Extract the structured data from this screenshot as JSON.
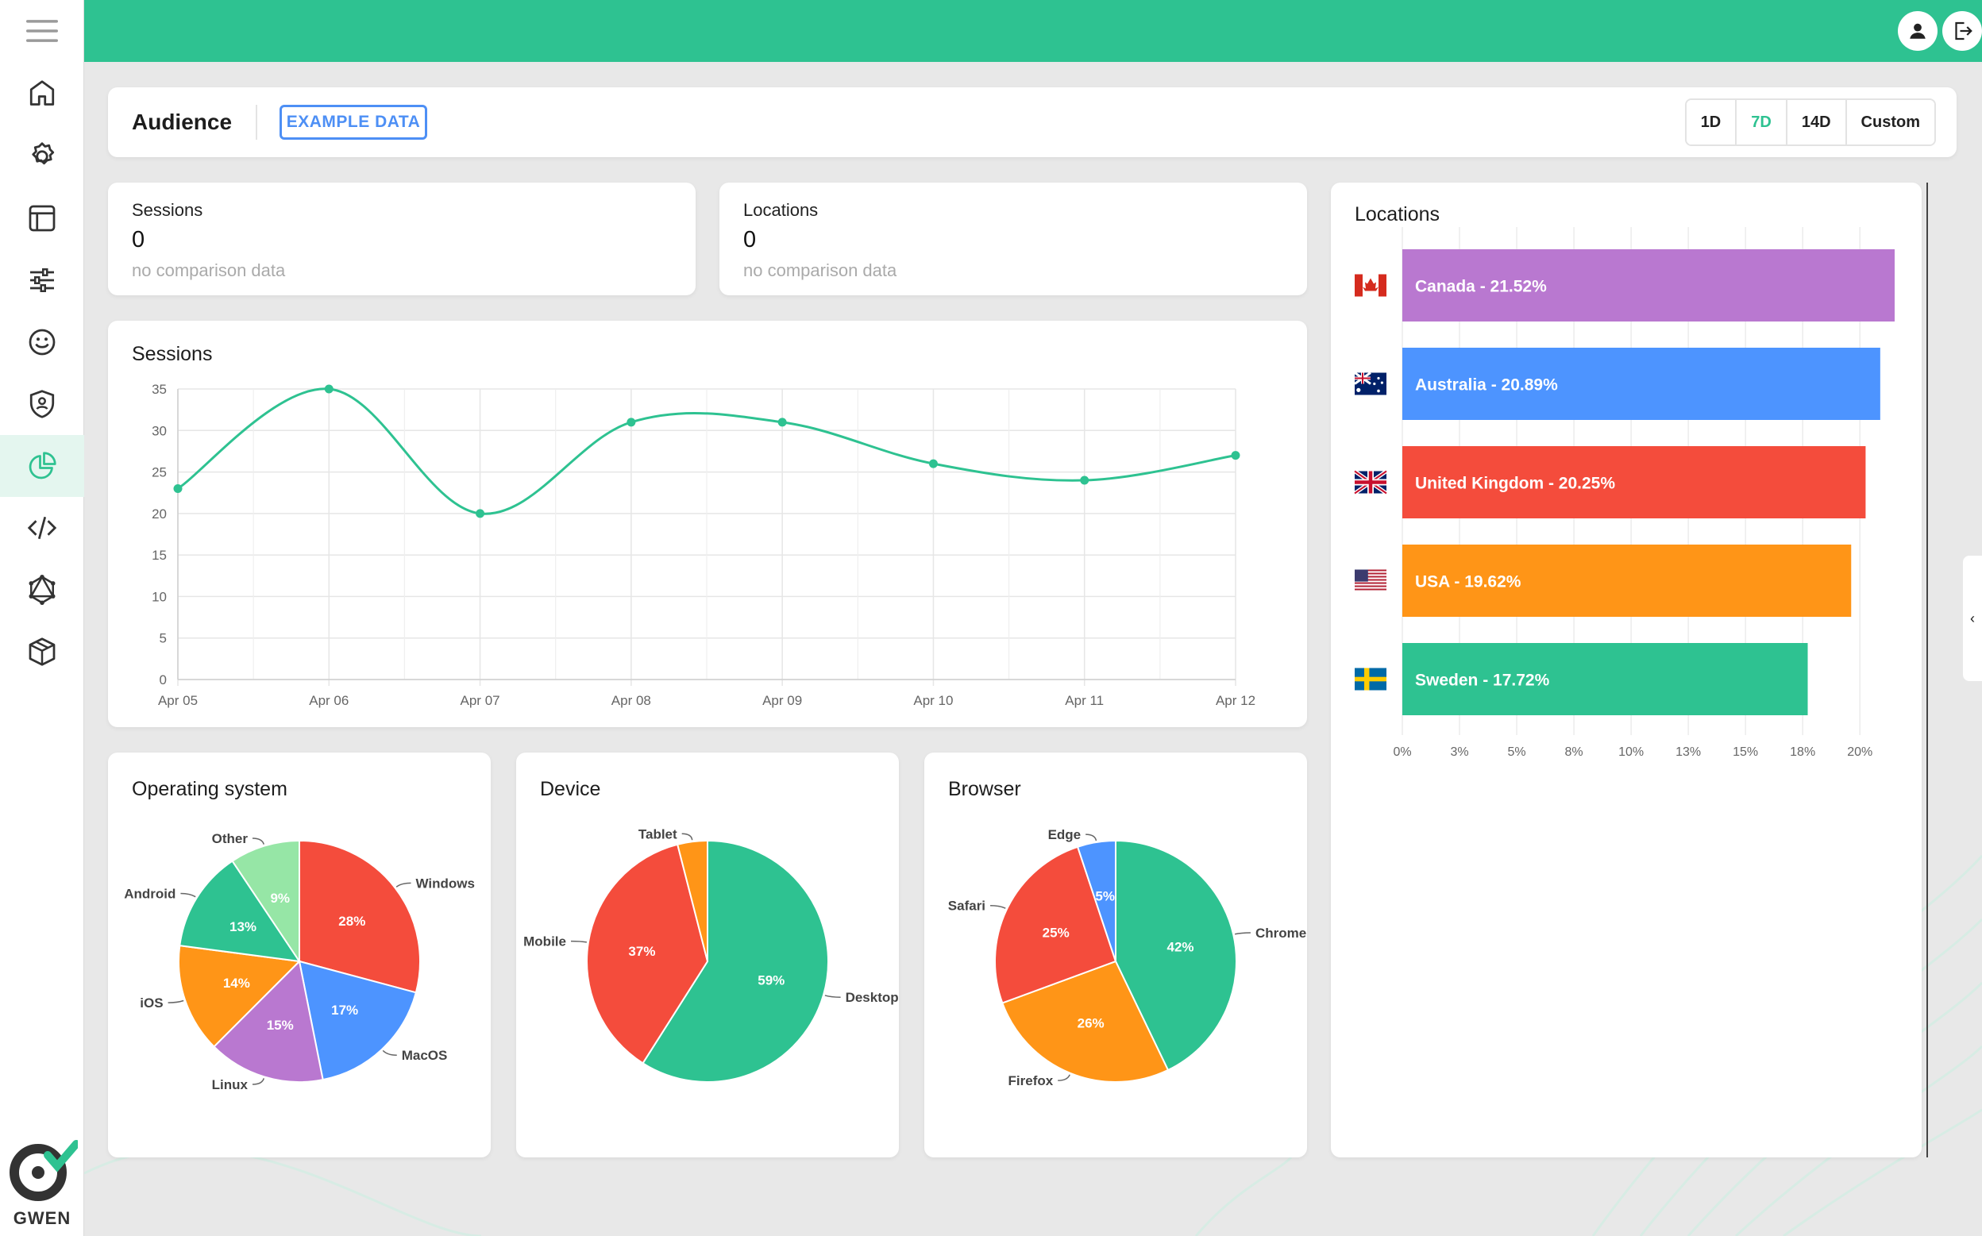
{
  "app": {
    "logo_text": "GWEN"
  },
  "sidebar": {
    "items": [
      {
        "name": "home-icon"
      },
      {
        "name": "gear-icon"
      },
      {
        "name": "table-icon"
      },
      {
        "name": "sliders-icon"
      },
      {
        "name": "smiley-icon"
      },
      {
        "name": "shield-icon"
      },
      {
        "name": "pie-chart-icon",
        "active": true
      },
      {
        "name": "code-icon"
      },
      {
        "name": "graphql-icon"
      },
      {
        "name": "package-icon"
      }
    ]
  },
  "header": {
    "title": "Audience",
    "example_label": "EXAMPLE DATA",
    "ranges": [
      "1D",
      "7D",
      "14D",
      "Custom"
    ],
    "active_range": "7D"
  },
  "stats": [
    {
      "label": "Sessions",
      "value": "0",
      "sub": "no comparison data"
    },
    {
      "label": "Locations",
      "value": "0",
      "sub": "no comparison data"
    }
  ],
  "colors": {
    "accent": "#2ec291",
    "green": "#2ec291",
    "red": "#f44c3c",
    "blue": "#4d94ff",
    "orange": "#ff9517",
    "purple": "#b978d0",
    "lightgreen": "#96e6a6"
  },
  "chart_data": [
    {
      "id": "sessions",
      "type": "line",
      "title": "Sessions",
      "x": [
        "Apr 05",
        "Apr 06",
        "Apr 07",
        "Apr 08",
        "Apr 09",
        "Apr 10",
        "Apr 11",
        "Apr 12"
      ],
      "series": [
        {
          "values": [
            23,
            35,
            20,
            31,
            31,
            26,
            24,
            27
          ]
        }
      ],
      "ylim": [
        0,
        35
      ],
      "yticks": [
        0,
        5,
        10,
        15,
        20,
        25,
        30,
        35
      ],
      "grid": true
    },
    {
      "id": "locations",
      "type": "bar",
      "orientation": "horizontal",
      "title": "Locations",
      "categories": [
        "Canada",
        "Australia",
        "United Kingdom",
        "USA",
        "Sweden"
      ],
      "values": [
        21.52,
        20.89,
        20.25,
        19.62,
        17.72
      ],
      "labels": [
        "Canada - 21.52%",
        "Australia - 20.89%",
        "United Kingdom - 20.25%",
        "USA - 19.62%",
        "Sweden - 17.72%"
      ],
      "flags": [
        "canada-flag-icon",
        "australia-flag-icon",
        "united-kingdom-flag-icon",
        "usa-flag-icon",
        "sweden-flag-icon"
      ],
      "xticks": [
        "0%",
        "3%",
        "5%",
        "8%",
        "10%",
        "13%",
        "15%",
        "18%",
        "20%"
      ],
      "xlim": [
        0,
        21.52
      ],
      "grid": true
    },
    {
      "id": "os",
      "type": "pie",
      "title": "Operating system",
      "slices": [
        {
          "label": "Windows",
          "value": 28,
          "text": "28%",
          "color": "#f44c3c"
        },
        {
          "label": "MacOS",
          "value": 17,
          "text": "17%",
          "color": "#4d94ff"
        },
        {
          "label": "Linux",
          "value": 15,
          "text": "15%",
          "color": "#b978d0"
        },
        {
          "label": "iOS",
          "value": 14,
          "text": "14%",
          "color": "#ff9517"
        },
        {
          "label": "Android",
          "value": 13,
          "text": "13%",
          "color": "#2ec291"
        },
        {
          "label": "Other",
          "value": 9,
          "text": "9%",
          "color": "#96e6a6"
        }
      ]
    },
    {
      "id": "device",
      "type": "pie",
      "title": "Device",
      "slices": [
        {
          "label": "Desktop",
          "value": 59,
          "text": "59%",
          "color": "#2ec291"
        },
        {
          "label": "Mobile",
          "value": 37,
          "text": "37%",
          "color": "#f44c3c"
        },
        {
          "label": "Tablet",
          "value": 4,
          "text": "",
          "color": "#ff9517"
        }
      ]
    },
    {
      "id": "browser",
      "type": "pie",
      "title": "Browser",
      "slices": [
        {
          "label": "Chrome",
          "value": 42,
          "text": "42%",
          "color": "#2ec291"
        },
        {
          "label": "Firefox",
          "value": 26,
          "text": "26%",
          "color": "#ff9517"
        },
        {
          "label": "Safari",
          "value": 25,
          "text": "25%",
          "color": "#f44c3c"
        },
        {
          "label": "Edge",
          "value": 5,
          "text": "5%",
          "color": "#4d94ff"
        }
      ]
    }
  ]
}
